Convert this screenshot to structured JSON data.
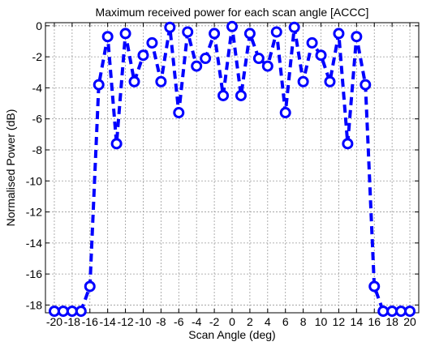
{
  "chart_data": {
    "type": "line",
    "title": "Maximum received power for each scan angle [ACCC]",
    "xlabel": "Scan Angle (deg)",
    "ylabel": "Normalised Power (dB)",
    "xlim": [
      -21,
      21
    ],
    "ylim": [
      -18.5,
      0.2
    ],
    "xticks": [
      -20,
      -18,
      -16,
      -14,
      -12,
      -10,
      -8,
      -6,
      -4,
      -2,
      0,
      2,
      4,
      6,
      8,
      10,
      12,
      14,
      16,
      18,
      20
    ],
    "yticks": [
      0,
      -2,
      -4,
      -6,
      -8,
      -10,
      -12,
      -14,
      -16,
      -18
    ],
    "grid": true,
    "series": [
      {
        "color": "#0000ff",
        "line_style": "dashed",
        "marker": "circle",
        "x": [
          -20,
          -19,
          -18,
          -17,
          -16,
          -15,
          -14,
          -13,
          -12,
          -11,
          -10,
          -9,
          -8,
          -7,
          -6,
          -5,
          -4,
          -3,
          -2,
          -1,
          0,
          1,
          2,
          3,
          4,
          5,
          6,
          7,
          8,
          9,
          10,
          11,
          12,
          13,
          14,
          15,
          16,
          17,
          18,
          19,
          20
        ],
        "y": [
          -18.4,
          -18.4,
          -18.4,
          -18.4,
          -16.8,
          -3.8,
          -0.7,
          -7.6,
          -0.5,
          -3.6,
          -1.9,
          -1.1,
          -3.6,
          -0.1,
          -5.6,
          -0.4,
          -2.6,
          -2.1,
          -0.5,
          -4.5,
          -0.05,
          -4.5,
          -0.5,
          -2.1,
          -2.6,
          -0.4,
          -5.6,
          -0.1,
          -3.6,
          -1.1,
          -1.9,
          -3.6,
          -0.5,
          -7.6,
          -0.7,
          -3.8,
          -16.8,
          -18.4,
          -18.4,
          -18.4,
          -18.4
        ]
      }
    ]
  }
}
